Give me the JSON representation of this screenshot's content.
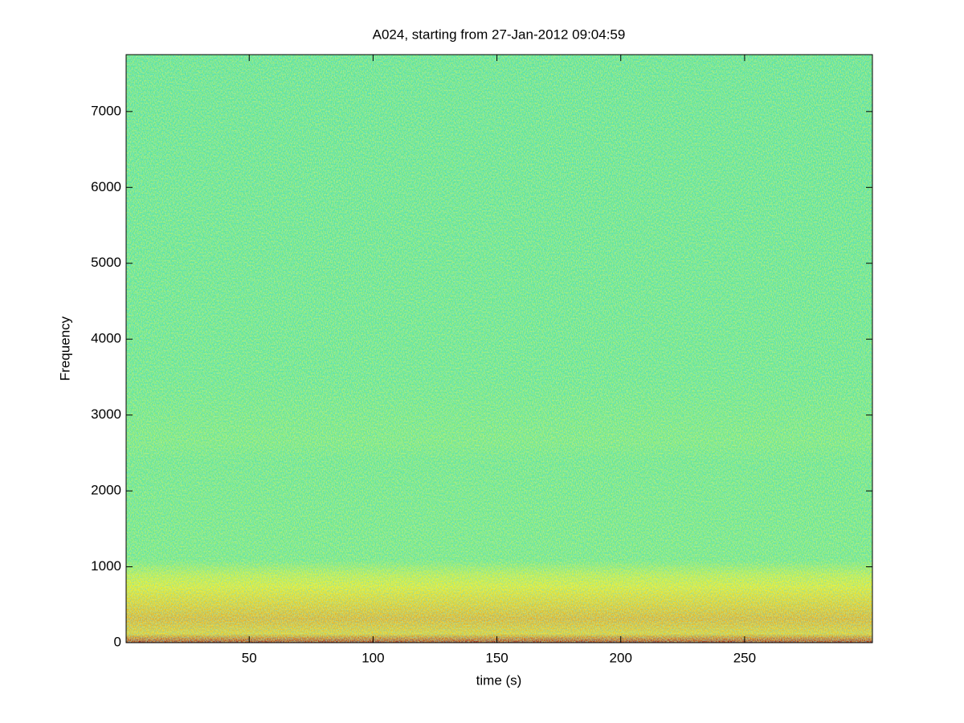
{
  "chart_data": {
    "type": "spectrogram",
    "title": "A024, starting from 27-Jan-2012 09:04:59",
    "xlabel": "time (s)",
    "ylabel": "Frequency",
    "xlim": [
      0.3,
      301.6
    ],
    "ylim": [
      0,
      7750
    ],
    "xticks": [
      50,
      100,
      150,
      200,
      250
    ],
    "yticks": [
      0,
      1000,
      2000,
      3000,
      4000,
      5000,
      6000,
      7000
    ]
  }
}
